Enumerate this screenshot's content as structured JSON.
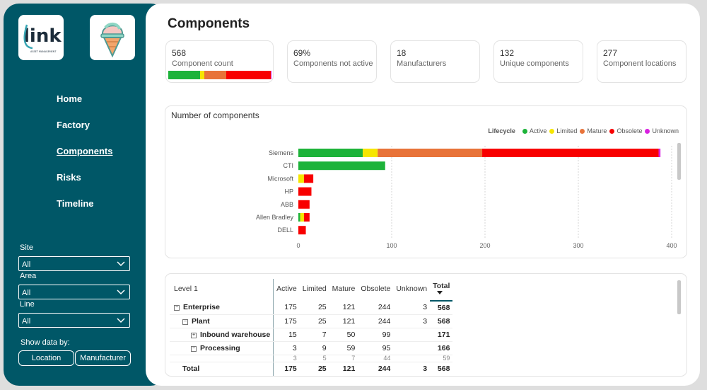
{
  "sidebar": {
    "logo_text": "link",
    "logo_subtext": "ASSET MANAGEMENT",
    "nav": [
      "Home",
      "Factory",
      "Components",
      "Risks",
      "Timeline"
    ],
    "active_nav": "Components",
    "filters": [
      {
        "label": "Site",
        "value": "All"
      },
      {
        "label": "Area",
        "value": "All"
      },
      {
        "label": "Line",
        "value": "All"
      }
    ],
    "show_data_by_label": "Show data by:",
    "show_data_by_options": [
      "Location",
      "Manufacturer"
    ]
  },
  "page_title": "Components",
  "cards": [
    {
      "value": "568",
      "label": "Component count"
    },
    {
      "value": "69%",
      "label": "Components not active"
    },
    {
      "value": "18",
      "label": "Manufacturers"
    },
    {
      "value": "132",
      "label": "Unique components"
    },
    {
      "value": "277",
      "label": "Component locations"
    }
  ],
  "lifecycle_colors": {
    "Active": "#1db33a",
    "Limited": "#f6e600",
    "Mature": "#e87339",
    "Obsolete": "#f80000",
    "Unknown": "#d820e0"
  },
  "chart_data": {
    "type": "bar",
    "orientation": "horizontal",
    "stacked": true,
    "title": "Number of components",
    "legend_title": "Lifecycle",
    "legend_position": "top-right",
    "categories": [
      "Siemens",
      "CTI",
      "Microsoft",
      "HP",
      "ABB",
      "Allen Bradley",
      "DELL"
    ],
    "series": [
      {
        "name": "Active",
        "values": [
          69,
          93,
          0,
          0,
          0,
          2,
          0
        ]
      },
      {
        "name": "Limited",
        "values": [
          16,
          0,
          6,
          0,
          0,
          4,
          0
        ]
      },
      {
        "name": "Mature",
        "values": [
          112,
          0,
          0,
          0,
          0,
          0,
          0
        ]
      },
      {
        "name": "Obsolete",
        "values": [
          189,
          0,
          10,
          14,
          12,
          6,
          8
        ]
      },
      {
        "name": "Unknown",
        "values": [
          2,
          0,
          0,
          0,
          0,
          0,
          0
        ]
      }
    ],
    "xlim": [
      0,
      400
    ],
    "xticks": [
      0,
      100,
      200,
      300,
      400
    ],
    "grid": true
  },
  "table": {
    "headers": [
      "Level 1",
      "Active",
      "Limited",
      "Mature",
      "Obsolete",
      "Unknown",
      "Total"
    ],
    "rows": [
      {
        "name": "Enterprise",
        "expander": "⊟",
        "indent": 0,
        "values": [
          "175",
          "25",
          "121",
          "244",
          "3",
          "568"
        ]
      },
      {
        "name": "Plant",
        "expander": "⊟",
        "indent": 1,
        "values": [
          "175",
          "25",
          "121",
          "244",
          "3",
          "568"
        ]
      },
      {
        "name": "Inbound warehouse",
        "expander": "⊞",
        "indent": 2,
        "values": [
          "15",
          "7",
          "50",
          "99",
          "",
          "171"
        ]
      },
      {
        "name": "Processing",
        "expander": "⊟",
        "indent": 2,
        "values": [
          "3",
          "9",
          "59",
          "95",
          "",
          "166"
        ]
      }
    ],
    "partial_row": {
      "values": [
        "3",
        "5",
        "7",
        "44",
        "",
        "59"
      ]
    },
    "total_row": {
      "name": "Total",
      "values": [
        "175",
        "25",
        "121",
        "244",
        "3",
        "568"
      ]
    }
  }
}
